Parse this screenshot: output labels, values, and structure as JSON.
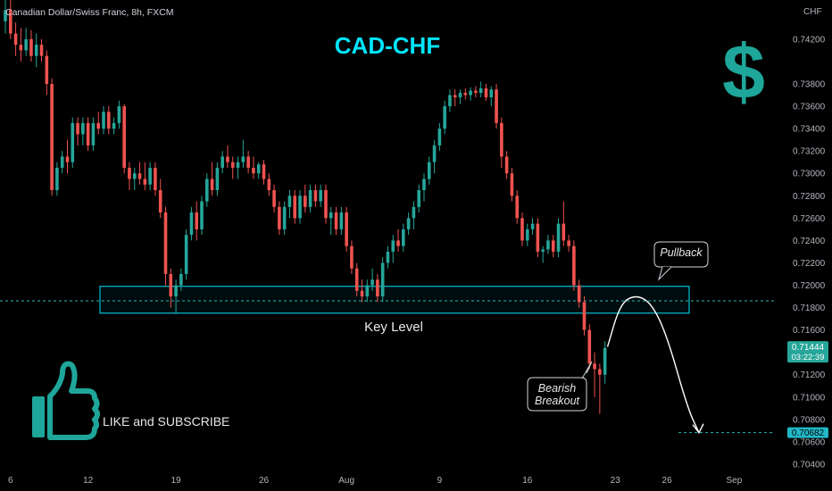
{
  "header": {
    "symbol": "Canadian Dollar/Swiss Franc, 8h, FXCM"
  },
  "price_scale": {
    "currency_label": "CHF"
  },
  "colors": {
    "up": "#26a69a",
    "down": "#ef5350",
    "accent": "#00e5ff",
    "text": "#d1d4dc"
  },
  "chart_data": {
    "type": "candlestick",
    "title": "CAD-CHF",
    "symbol": "CADCHF",
    "timeframe": "8h",
    "source": "FXCM",
    "y_ticks": [
      0.704,
      0.706,
      0.708,
      0.71,
      0.712,
      0.716,
      0.718,
      0.72,
      0.722,
      0.724,
      0.726,
      0.728,
      0.73,
      0.732,
      0.734,
      0.736,
      0.738,
      0.742
    ],
    "ylim": [
      0.7032,
      0.7455
    ],
    "x_ticks": [
      {
        "label": "6",
        "bar": 1
      },
      {
        "label": "12",
        "bar": 16
      },
      {
        "label": "19",
        "bar": 33
      },
      {
        "label": "26",
        "bar": 50
      },
      {
        "label": "Aug",
        "bar": 66
      },
      {
        "label": "9",
        "bar": 84
      },
      {
        "label": "16",
        "bar": 101
      },
      {
        "label": "23",
        "bar": 118
      },
      {
        "label": "26",
        "bar": 128
      },
      {
        "label": "Sep",
        "bar": 141
      }
    ],
    "ohlc": [
      [
        0.7436,
        0.7455,
        0.7425,
        0.7446
      ],
      [
        0.7446,
        0.7455,
        0.742,
        0.7425
      ],
      [
        0.7425,
        0.7435,
        0.7405,
        0.7415
      ],
      [
        0.7415,
        0.743,
        0.74,
        0.741
      ],
      [
        0.741,
        0.743,
        0.7405,
        0.742
      ],
      [
        0.742,
        0.7428,
        0.74,
        0.7405
      ],
      [
        0.7405,
        0.7425,
        0.7395,
        0.7415
      ],
      [
        0.7415,
        0.742,
        0.74,
        0.7405
      ],
      [
        0.7405,
        0.741,
        0.737,
        0.738
      ],
      [
        0.738,
        0.7385,
        0.728,
        0.7285
      ],
      [
        0.7285,
        0.731,
        0.728,
        0.7305
      ],
      [
        0.7305,
        0.732,
        0.73,
        0.7315
      ],
      [
        0.7315,
        0.733,
        0.73,
        0.731
      ],
      [
        0.731,
        0.735,
        0.7305,
        0.7345
      ],
      [
        0.7345,
        0.735,
        0.7325,
        0.7335
      ],
      [
        0.7335,
        0.735,
        0.7325,
        0.7345
      ],
      [
        0.7345,
        0.735,
        0.732,
        0.7325
      ],
      [
        0.7325,
        0.735,
        0.732,
        0.7345
      ],
      [
        0.7345,
        0.7355,
        0.7335,
        0.734
      ],
      [
        0.734,
        0.736,
        0.7335,
        0.7355
      ],
      [
        0.7355,
        0.736,
        0.7335,
        0.734
      ],
      [
        0.734,
        0.735,
        0.7335,
        0.7345
      ],
      [
        0.7345,
        0.7365,
        0.734,
        0.736
      ],
      [
        0.736,
        0.7362,
        0.73,
        0.7305
      ],
      [
        0.7305,
        0.731,
        0.7285,
        0.7295
      ],
      [
        0.7295,
        0.7305,
        0.7285,
        0.73
      ],
      [
        0.73,
        0.731,
        0.729,
        0.7295
      ],
      [
        0.7295,
        0.731,
        0.7285,
        0.729
      ],
      [
        0.729,
        0.731,
        0.7285,
        0.7305
      ],
      [
        0.7305,
        0.731,
        0.728,
        0.7285
      ],
      [
        0.7285,
        0.7295,
        0.726,
        0.7265
      ],
      [
        0.7265,
        0.727,
        0.72,
        0.721
      ],
      [
        0.721,
        0.7215,
        0.718,
        0.719
      ],
      [
        0.719,
        0.7205,
        0.7175,
        0.72
      ],
      [
        0.72,
        0.7215,
        0.7195,
        0.721
      ],
      [
        0.721,
        0.725,
        0.7205,
        0.7245
      ],
      [
        0.7245,
        0.727,
        0.724,
        0.7265
      ],
      [
        0.7265,
        0.7275,
        0.724,
        0.725
      ],
      [
        0.725,
        0.728,
        0.7245,
        0.7275
      ],
      [
        0.7275,
        0.73,
        0.727,
        0.7295
      ],
      [
        0.7295,
        0.731,
        0.728,
        0.7285
      ],
      [
        0.7285,
        0.731,
        0.728,
        0.7305
      ],
      [
        0.7305,
        0.732,
        0.73,
        0.7315
      ],
      [
        0.7315,
        0.7325,
        0.7305,
        0.731
      ],
      [
        0.731,
        0.7315,
        0.7295,
        0.7305
      ],
      [
        0.7305,
        0.7315,
        0.7295,
        0.731
      ],
      [
        0.731,
        0.733,
        0.7305,
        0.7315
      ],
      [
        0.7315,
        0.732,
        0.73,
        0.7305
      ],
      [
        0.7305,
        0.7315,
        0.7295,
        0.73
      ],
      [
        0.73,
        0.731,
        0.7295,
        0.7308
      ],
      [
        0.7308,
        0.7312,
        0.729,
        0.7295
      ],
      [
        0.7295,
        0.73,
        0.728,
        0.7285
      ],
      [
        0.7285,
        0.729,
        0.7265,
        0.727
      ],
      [
        0.727,
        0.7275,
        0.7245,
        0.725
      ],
      [
        0.725,
        0.7275,
        0.7245,
        0.727
      ],
      [
        0.727,
        0.7285,
        0.726,
        0.728
      ],
      [
        0.728,
        0.7285,
        0.7255,
        0.726
      ],
      [
        0.726,
        0.7285,
        0.7255,
        0.728
      ],
      [
        0.728,
        0.729,
        0.7265,
        0.727
      ],
      [
        0.727,
        0.729,
        0.7265,
        0.7285
      ],
      [
        0.7285,
        0.729,
        0.727,
        0.7275
      ],
      [
        0.7275,
        0.729,
        0.727,
        0.7285
      ],
      [
        0.7285,
        0.729,
        0.7255,
        0.726
      ],
      [
        0.726,
        0.727,
        0.7245,
        0.7265
      ],
      [
        0.7265,
        0.727,
        0.7245,
        0.725
      ],
      [
        0.725,
        0.727,
        0.7245,
        0.7265
      ],
      [
        0.7265,
        0.727,
        0.723,
        0.7235
      ],
      [
        0.7235,
        0.724,
        0.721,
        0.7215
      ],
      [
        0.7215,
        0.722,
        0.719,
        0.7195
      ],
      [
        0.7195,
        0.7205,
        0.7185,
        0.719
      ],
      [
        0.719,
        0.7205,
        0.7185,
        0.72
      ],
      [
        0.72,
        0.7215,
        0.7195,
        0.7205
      ],
      [
        0.7205,
        0.721,
        0.7185,
        0.719
      ],
      [
        0.719,
        0.7225,
        0.7185,
        0.722
      ],
      [
        0.722,
        0.7235,
        0.7215,
        0.723
      ],
      [
        0.723,
        0.7245,
        0.722,
        0.724
      ],
      [
        0.724,
        0.725,
        0.723,
        0.7235
      ],
      [
        0.7235,
        0.7255,
        0.723,
        0.725
      ],
      [
        0.725,
        0.7265,
        0.7245,
        0.726
      ],
      [
        0.726,
        0.7275,
        0.725,
        0.727
      ],
      [
        0.727,
        0.729,
        0.7265,
        0.7285
      ],
      [
        0.7285,
        0.73,
        0.7275,
        0.7295
      ],
      [
        0.7295,
        0.7315,
        0.729,
        0.731
      ],
      [
        0.731,
        0.733,
        0.73,
        0.7325
      ],
      [
        0.7325,
        0.7345,
        0.732,
        0.734
      ],
      [
        0.734,
        0.7365,
        0.7335,
        0.736
      ],
      [
        0.736,
        0.7375,
        0.7355,
        0.737
      ],
      [
        0.737,
        0.7375,
        0.736,
        0.7368
      ],
      [
        0.7368,
        0.7375,
        0.7362,
        0.7372
      ],
      [
        0.7372,
        0.7376,
        0.7366,
        0.737
      ],
      [
        0.737,
        0.7377,
        0.7365,
        0.7374
      ],
      [
        0.7374,
        0.7378,
        0.7368,
        0.7372
      ],
      [
        0.7372,
        0.7382,
        0.7368,
        0.7376
      ],
      [
        0.7376,
        0.738,
        0.7365,
        0.7368
      ],
      [
        0.7368,
        0.7378,
        0.736,
        0.7375
      ],
      [
        0.7375,
        0.738,
        0.734,
        0.7345
      ],
      [
        0.7345,
        0.735,
        0.7305,
        0.7315
      ],
      [
        0.7315,
        0.732,
        0.7295,
        0.73
      ],
      [
        0.73,
        0.7305,
        0.7275,
        0.728
      ],
      [
        0.728,
        0.7285,
        0.7255,
        0.726
      ],
      [
        0.726,
        0.7265,
        0.7235,
        0.724
      ],
      [
        0.724,
        0.7255,
        0.7235,
        0.725
      ],
      [
        0.725,
        0.726,
        0.7245,
        0.7255
      ],
      [
        0.7255,
        0.726,
        0.7225,
        0.723
      ],
      [
        0.723,
        0.7235,
        0.722,
        0.7232
      ],
      [
        0.7232,
        0.7245,
        0.7228,
        0.724
      ],
      [
        0.724,
        0.7245,
        0.7225,
        0.723
      ],
      [
        0.723,
        0.726,
        0.7225,
        0.7255
      ],
      [
        0.7255,
        0.7275,
        0.7235,
        0.724
      ],
      [
        0.724,
        0.7245,
        0.723,
        0.7235
      ],
      [
        0.7235,
        0.724,
        0.7195,
        0.72
      ],
      [
        0.72,
        0.7205,
        0.718,
        0.7185
      ],
      [
        0.7185,
        0.719,
        0.7155,
        0.716
      ],
      [
        0.716,
        0.7165,
        0.7125,
        0.713
      ],
      [
        0.713,
        0.714,
        0.71,
        0.7125
      ],
      [
        0.7125,
        0.713,
        0.7085,
        0.712
      ],
      [
        0.712,
        0.715,
        0.7112,
        0.7144
      ]
    ],
    "key_level": {
      "low": 0.7175,
      "high": 0.7199,
      "label": "Key Level"
    },
    "reference_line": 0.7186,
    "current_price": {
      "price": "0.71444",
      "countdown": "03:22:39"
    },
    "target_price": {
      "value": 0.70682,
      "label": "0.70682"
    },
    "projection": {
      "points": [
        [
          116.5,
          0.7145
        ],
        [
          119,
          0.7184
        ],
        [
          122,
          0.71915
        ],
        [
          125,
          0.7184
        ],
        [
          128,
          0.7155
        ],
        [
          132,
          0.709
        ],
        [
          134.2,
          0.70682
        ]
      ]
    },
    "annotations": [
      {
        "id": "pullback",
        "text": [
          "Pullback"
        ]
      },
      {
        "id": "bearish-breakout",
        "text": [
          "Bearish",
          "Breakout"
        ]
      }
    ]
  },
  "promo": {
    "cta": "LIKE and SUBSCRIBE",
    "dollar": "$"
  }
}
